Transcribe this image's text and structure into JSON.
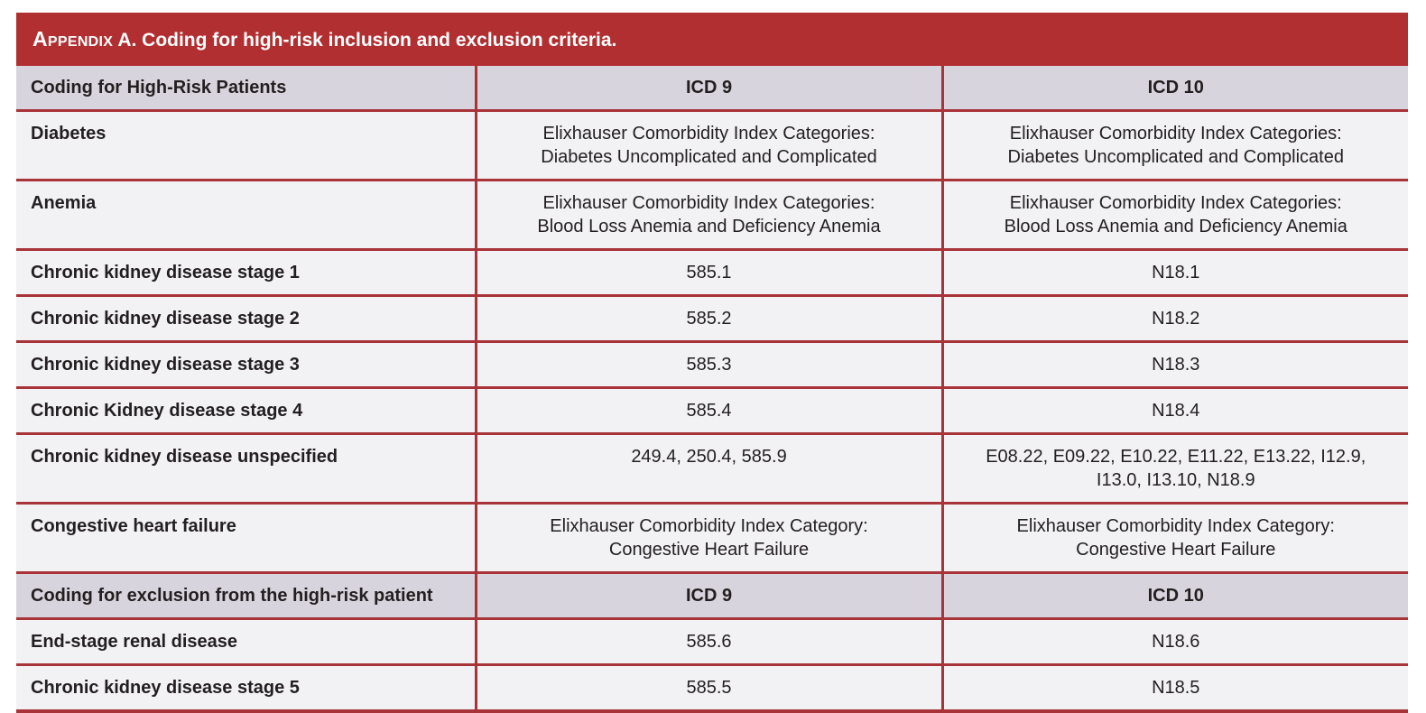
{
  "title": {
    "prefix": "Appendix",
    "rest": " A. Coding for high-risk inclusion and exclusion criteria."
  },
  "colors": {
    "accent_red": "#b22f31",
    "border_red": "#a83339",
    "header_bg": "#d7d4dd",
    "row_bg": "#f2f1f4",
    "title_text": "#ffffff",
    "body_text": "#231f20"
  },
  "table": {
    "sections": [
      {
        "header": {
          "col1": "Coding for High-Risk Patients",
          "col2": "ICD 9",
          "col3": "ICD 10"
        },
        "rows": [
          {
            "label": "Diabetes",
            "icd9": "Elixhauser Comorbidity Index Categories:\nDiabetes Uncomplicated and Complicated",
            "icd10": "Elixhauser Comorbidity Index Categories:\nDiabetes Uncomplicated and Complicated"
          },
          {
            "label": "Anemia",
            "icd9": "Elixhauser Comorbidity Index Categories:\nBlood Loss Anemia and Deficiency Anemia",
            "icd10": "Elixhauser Comorbidity Index Categories:\nBlood Loss Anemia and Deficiency Anemia"
          },
          {
            "label": "Chronic kidney disease stage 1",
            "icd9": "585.1",
            "icd10": "N18.1"
          },
          {
            "label": "Chronic kidney disease stage 2",
            "icd9": "585.2",
            "icd10": "N18.2"
          },
          {
            "label": "Chronic kidney disease stage 3",
            "icd9": "585.3",
            "icd10": "N18.3"
          },
          {
            "label": "Chronic Kidney disease stage 4",
            "icd9": "585.4",
            "icd10": "N18.4"
          },
          {
            "label": "Chronic kidney disease unspecified",
            "icd9": "249.4, 250.4, 585.9",
            "icd10": "E08.22, E09.22, E10.22, E11.22, E13.22, I12.9,\nI13.0, I13.10, N18.9"
          },
          {
            "label": "Congestive heart failure",
            "icd9": "Elixhauser Comorbidity Index Category:\nCongestive Heart Failure",
            "icd10": "Elixhauser Comorbidity Index Category:\nCongestive Heart Failure"
          }
        ]
      },
      {
        "header": {
          "col1": "Coding for exclusion from the high-risk patient",
          "col2": "ICD 9",
          "col3": "ICD 10"
        },
        "rows": [
          {
            "label": "End-stage renal disease",
            "icd9": "585.6",
            "icd10": "N18.6"
          },
          {
            "label": "Chronic kidney disease stage 5",
            "icd9": "585.5",
            "icd10": "N18.5"
          }
        ]
      }
    ]
  }
}
